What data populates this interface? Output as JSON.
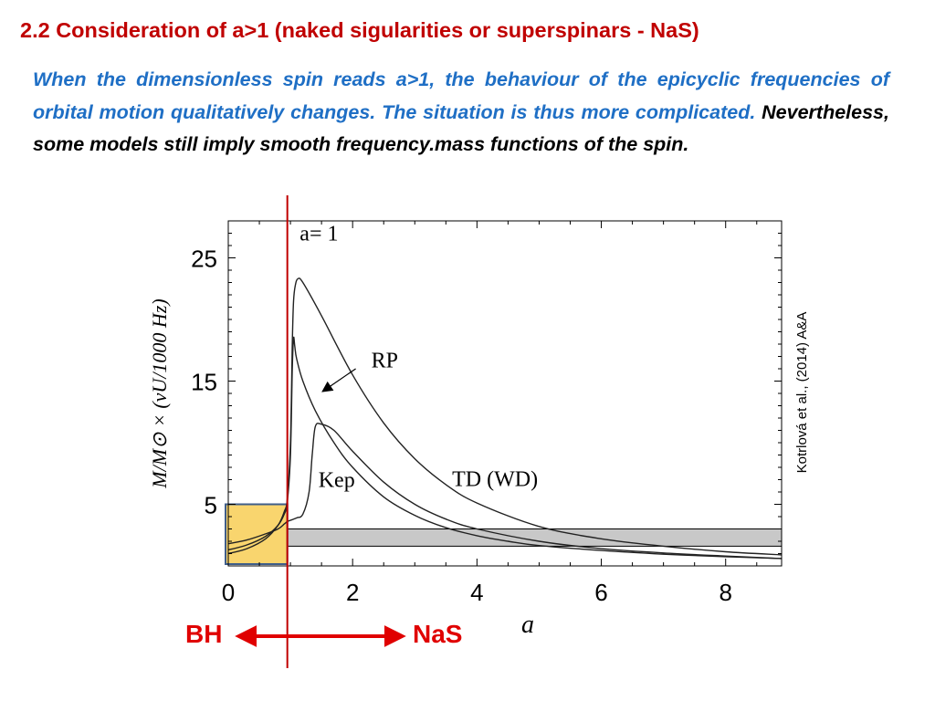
{
  "slide": {
    "title": "2.2  Consideration of  a>1  (naked sigularities or superspinars - NaS)",
    "body_blue": "When the dimensionless spin reads a>1, the behaviour of the epicyclic frequencies of orbital motion qualitatively changes. The situation is thus more complicated.",
    "body_black": "Nevertheless, some models still imply smooth frequency.mass functions of the spin.",
    "citation": "Kotrlová et al., (2014) A&A",
    "bh_label": "BH",
    "nas_label": "NaS",
    "colors": {
      "title": "#c00000",
      "blue_text": "#1f6fc5",
      "marker": "#e00000",
      "bh_box": "#f9d56e",
      "band": "#c8c8c8"
    }
  },
  "chart_data": {
    "type": "line",
    "xlabel": "a",
    "ylabel": "M/M⊙ × (νU/1000 Hz)",
    "xlim": [
      0,
      8.9
    ],
    "ylim": [
      0,
      28
    ],
    "x_ticks": [
      0,
      2,
      4,
      6,
      8
    ],
    "y_ticks": [
      5,
      15,
      25
    ],
    "grid": false,
    "annotations": [
      {
        "text": "a= 1",
        "x": 1.15,
        "y": 26.4
      },
      {
        "text": "RP",
        "x": 2.3,
        "y": 16.1
      },
      {
        "text": "Kep",
        "x": 1.45,
        "y": 6.4
      },
      {
        "text": "TD (WD)",
        "x": 3.6,
        "y": 6.5
      }
    ],
    "arrow": {
      "from": [
        2.05,
        16.0
      ],
      "to": [
        1.5,
        14.1
      ]
    },
    "marker_line_x": 0.95,
    "bh_region": {
      "x": [
        0,
        0.95
      ],
      "y": [
        0,
        5
      ]
    },
    "shaded_band": {
      "y": [
        1.6,
        3.0
      ]
    },
    "series": [
      {
        "x": [
          0,
          0.3,
          0.6,
          0.8,
          0.9,
          0.95,
          1.0,
          1.03,
          1.05,
          1.07,
          1.1,
          1.2,
          1.4,
          1.7,
          2.0,
          2.5,
          3.0,
          3.5,
          4.0,
          4.5,
          5.0,
          6.0,
          7.0,
          8.0,
          8.9
        ],
        "values": [
          1.3,
          1.7,
          2.4,
          3.3,
          4.2,
          5.2,
          9.0,
          16.0,
          18.5,
          17.8,
          16.8,
          15.0,
          12.6,
          10.0,
          8.0,
          5.6,
          4.1,
          3.1,
          2.45,
          2.0,
          1.65,
          1.25,
          0.95,
          0.75,
          0.6
        ]
      },
      {
        "x": [
          0,
          0.3,
          0.6,
          0.8,
          0.9,
          0.95,
          1.0,
          1.03,
          1.05,
          1.08,
          1.12,
          1.2,
          1.5,
          2.0,
          2.5,
          3.0,
          3.5,
          4.0,
          5.0,
          6.0,
          7.0,
          8.0,
          8.9
        ],
        "values": [
          1.0,
          1.4,
          2.2,
          3.3,
          4.4,
          5.5,
          10.0,
          18.0,
          21.5,
          22.8,
          23.3,
          23.0,
          20.3,
          15.5,
          11.6,
          8.7,
          6.6,
          5.1,
          3.2,
          2.2,
          1.6,
          1.15,
          0.9
        ]
      },
      {
        "x": [
          0,
          0.3,
          0.6,
          0.8,
          0.9,
          0.95,
          1.0,
          1.1,
          1.2,
          1.3,
          1.35,
          1.4,
          1.5,
          1.7,
          2.0,
          2.5,
          3.0,
          3.5,
          4.0,
          5.0,
          6.0,
          7.0,
          8.0,
          8.9
        ],
        "values": [
          1.8,
          2.1,
          2.6,
          3.0,
          3.4,
          3.6,
          3.7,
          3.9,
          4.2,
          6.0,
          9.0,
          11.3,
          11.5,
          11.0,
          9.3,
          6.8,
          5.0,
          3.8,
          3.0,
          2.0,
          1.4,
          1.05,
          0.8,
          0.6
        ]
      }
    ]
  }
}
